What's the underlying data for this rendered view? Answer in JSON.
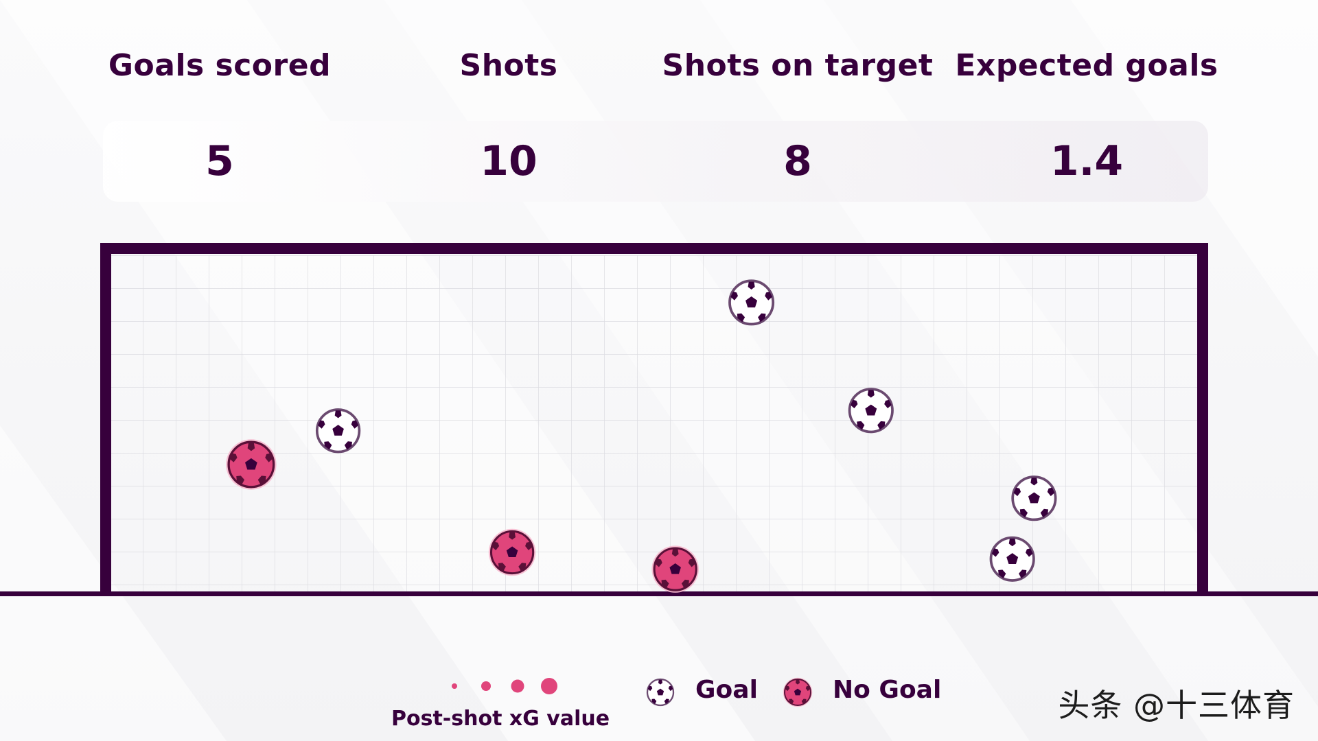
{
  "stats": {
    "goals_scored_label": "Goals scored",
    "goals_scored_value": "5",
    "shots_label": "Shots",
    "shots_value": "10",
    "on_target_label": "Shots on target",
    "on_target_value": "8",
    "xg_label": "Expected goals",
    "xg_value": "1.4"
  },
  "legend": {
    "size_label": "Post-shot xG value",
    "goal_label": "Goal",
    "nogoal_label": "No Goal"
  },
  "watermark": "头条 @十三体育",
  "colors": {
    "frame": "#37003c",
    "goal_ball": "#ffffff",
    "no_goal_ball": "#e0457b",
    "panel": "#6b4a70"
  },
  "chart_data": {
    "type": "scatter",
    "title": "",
    "xlabel": "",
    "ylabel": "",
    "xlim": [
      0,
      1
    ],
    "ylim": [
      0,
      1
    ],
    "x_axis_meaning": "horizontal position across the goal mouth",
    "y_axis_meaning": "height above the goal line",
    "series": [
      {
        "name": "Goal",
        "points": [
          {
            "x": 0.21,
            "y": 0.48,
            "size": 0.34
          },
          {
            "x": 0.59,
            "y": 0.86,
            "size": 0.38
          },
          {
            "x": 0.7,
            "y": 0.54,
            "size": 0.36
          },
          {
            "x": 0.85,
            "y": 0.28,
            "size": 0.36
          },
          {
            "x": 0.83,
            "y": 0.1,
            "size": 0.36
          }
        ]
      },
      {
        "name": "No Goal",
        "points": [
          {
            "x": 0.13,
            "y": 0.38,
            "size": 0.44
          },
          {
            "x": 0.37,
            "y": 0.12,
            "size": 0.33
          },
          {
            "x": 0.52,
            "y": 0.07,
            "size": 0.33
          }
        ]
      }
    ]
  }
}
